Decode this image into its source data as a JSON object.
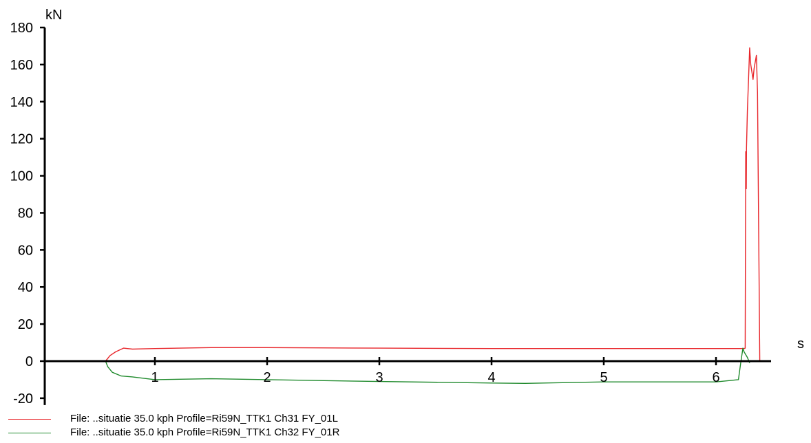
{
  "chart_data": {
    "type": "line",
    "x_unit": "s",
    "y_unit": "kN",
    "xlim": [
      -0.4,
      6.5
    ],
    "ylim": [
      -20,
      180
    ],
    "x_ticks": [
      1,
      2,
      3,
      4,
      5,
      6
    ],
    "y_ticks": [
      -20,
      0,
      20,
      40,
      60,
      80,
      100,
      120,
      140,
      160,
      180
    ],
    "grid": false,
    "legend_position": "bottom-left",
    "series": [
      {
        "name": "File: ..situatie 35.0 kph Profile=Ri59N_TTK1 Ch31 FY_01L",
        "color": "#e8252a",
        "x": [
          0.56,
          0.6,
          0.65,
          0.72,
          0.8,
          1.0,
          1.5,
          2.0,
          3.0,
          4.0,
          5.0,
          6.0,
          6.22,
          6.25,
          6.26,
          6.265,
          6.27,
          6.272,
          6.28,
          6.3,
          6.31,
          6.33,
          6.34,
          6.36,
          6.37,
          6.39
        ],
        "y": [
          0,
          3,
          5,
          7,
          6.5,
          6.8,
          7.3,
          7.3,
          7.0,
          6.8,
          6.8,
          6.8,
          6.8,
          6.8,
          7,
          113,
          93,
          115,
          135,
          169,
          160,
          152,
          158,
          165,
          145,
          0
        ]
      },
      {
        "name": "File: ..situatie 35.0 kph Profile=Ri59N_TTK1 Ch32 FY_01R",
        "color": "#1f8a2c",
        "x": [
          0.56,
          0.58,
          0.62,
          0.7,
          0.8,
          1.0,
          1.5,
          2.0,
          3.0,
          4.0,
          4.3,
          5.0,
          6.0,
          6.2,
          6.22,
          6.24,
          6.25,
          6.28,
          6.3
        ],
        "y": [
          0,
          -3,
          -6,
          -8,
          -8.5,
          -10,
          -9.5,
          -10,
          -11,
          -11.8,
          -12,
          -11.2,
          -11.2,
          -10,
          -1,
          7,
          5,
          2,
          -1
        ]
      }
    ]
  }
}
